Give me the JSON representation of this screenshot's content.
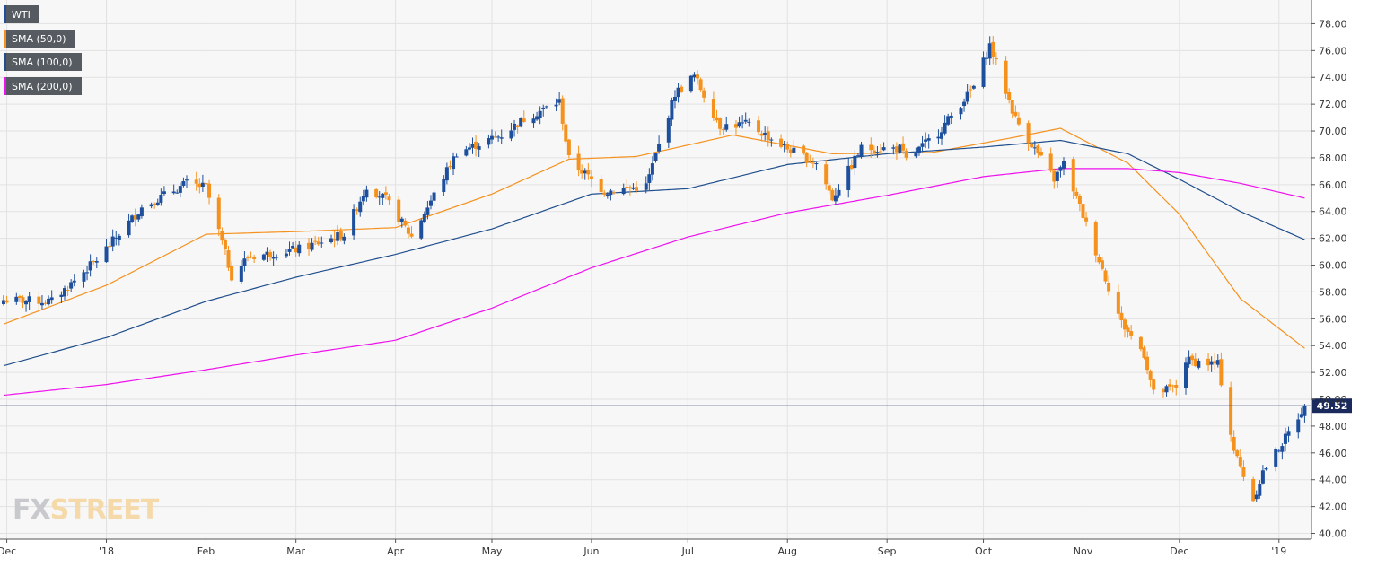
{
  "legend": {
    "wti": "WTI",
    "sma50": "SMA (50,0)",
    "sma100": "SMA (100,0)",
    "sma200": "SMA (200,0)"
  },
  "watermark": {
    "fx": "FX",
    "street": "STREET"
  },
  "colors": {
    "background": "#f7f7f7",
    "grid": "#e2e2e2",
    "bull": "#1d4f9c",
    "bear": "#f5921e",
    "sma50": "#f5921e",
    "sma100": "#1f4e8c",
    "sma200": "#ee11ee",
    "price_line": "#1a2a5c",
    "legend_bg": "#555b61"
  },
  "chart_data": {
    "type": "candlestick",
    "title": "",
    "instrument": "WTI",
    "timeframe": "daily",
    "xlabel": "",
    "ylabel": "",
    "ylim": [
      39.5,
      79.5
    ],
    "y_ticks": [
      "40.00",
      "42.00",
      "44.00",
      "46.00",
      "48.00",
      "50.00",
      "52.00",
      "54.00",
      "56.00",
      "58.00",
      "60.00",
      "62.00",
      "64.00",
      "66.00",
      "68.00",
      "70.00",
      "72.00",
      "74.00",
      "76.00",
      "78.00"
    ],
    "x_range": [
      "2017-11-30",
      "2019-01-10"
    ],
    "x_ticks": [
      {
        "label": "Dec",
        "date": "2017-12-01"
      },
      {
        "label": "'18",
        "date": "2018-01-01"
      },
      {
        "label": "Feb",
        "date": "2018-02-01"
      },
      {
        "label": "Mar",
        "date": "2018-03-01"
      },
      {
        "label": "Apr",
        "date": "2018-04-01"
      },
      {
        "label": "May",
        "date": "2018-05-01"
      },
      {
        "label": "Jun",
        "date": "2018-06-01"
      },
      {
        "label": "Jul",
        "date": "2018-07-01"
      },
      {
        "label": "Aug",
        "date": "2018-08-01"
      },
      {
        "label": "Sep",
        "date": "2018-09-01"
      },
      {
        "label": "Oct",
        "date": "2018-10-01"
      },
      {
        "label": "Nov",
        "date": "2018-11-01"
      },
      {
        "label": "Dec",
        "date": "2018-12-01"
      },
      {
        "label": "'19",
        "date": "2019-01-01"
      }
    ],
    "last_price": 49.52,
    "last_price_label": "49.52",
    "grid": true,
    "legend_position": "top-left",
    "close_anchors": [
      [
        "2017-11-30",
        57.4
      ],
      [
        "2017-12-15",
        57.3
      ],
      [
        "2017-12-29",
        60.4
      ],
      [
        "2018-01-12",
        64.3
      ],
      [
        "2018-01-26",
        66.1
      ],
      [
        "2018-02-01",
        65.8
      ],
      [
        "2018-02-09",
        59.2
      ],
      [
        "2018-02-14",
        60.6
      ],
      [
        "2018-03-02",
        61.2
      ],
      [
        "2018-03-16",
        62.3
      ],
      [
        "2018-03-23",
        65.9
      ],
      [
        "2018-03-29",
        64.9
      ],
      [
        "2018-04-06",
        62.1
      ],
      [
        "2018-04-20",
        68.4
      ],
      [
        "2018-05-04",
        69.7
      ],
      [
        "2018-05-11",
        70.9
      ],
      [
        "2018-05-22",
        72.2
      ],
      [
        "2018-05-25",
        67.9
      ],
      [
        "2018-06-05",
        65.5
      ],
      [
        "2018-06-18",
        65.9
      ],
      [
        "2018-06-27",
        72.8
      ],
      [
        "2018-07-03",
        74.1
      ],
      [
        "2018-07-11",
        70.4
      ],
      [
        "2018-07-20",
        70.5
      ],
      [
        "2018-07-31",
        68.8
      ],
      [
        "2018-08-10",
        67.6
      ],
      [
        "2018-08-15",
        65.0
      ],
      [
        "2018-08-24",
        68.7
      ],
      [
        "2018-09-05",
        68.7
      ],
      [
        "2018-09-07",
        67.8
      ],
      [
        "2018-09-17",
        69.9
      ],
      [
        "2018-09-28",
        73.3
      ],
      [
        "2018-10-03",
        76.4
      ],
      [
        "2018-10-11",
        70.9
      ],
      [
        "2018-10-23",
        66.4
      ],
      [
        "2018-10-26",
        67.6
      ],
      [
        "2018-11-01",
        63.7
      ],
      [
        "2018-11-13",
        55.7
      ],
      [
        "2018-11-20",
        53.4
      ],
      [
        "2018-11-23",
        50.4
      ],
      [
        "2018-11-30",
        50.9
      ],
      [
        "2018-12-03",
        52.9
      ],
      [
        "2018-12-13",
        52.6
      ],
      [
        "2018-12-18",
        46.2
      ],
      [
        "2018-12-24",
        42.5
      ],
      [
        "2018-12-27",
        44.6
      ],
      [
        "2019-01-03",
        47.1
      ],
      [
        "2019-01-09",
        49.52
      ]
    ],
    "sma_series": [
      {
        "name": "SMA (50,0)",
        "color": "#f5921e",
        "points": [
          [
            "2017-11-30",
            55.6
          ],
          [
            "2018-01-01",
            58.5
          ],
          [
            "2018-02-01",
            62.3
          ],
          [
            "2018-03-01",
            62.5
          ],
          [
            "2018-04-01",
            62.8
          ],
          [
            "2018-05-01",
            65.3
          ],
          [
            "2018-05-25",
            67.9
          ],
          [
            "2018-06-15",
            68.1
          ],
          [
            "2018-07-15",
            69.7
          ],
          [
            "2018-08-15",
            68.3
          ],
          [
            "2018-09-15",
            68.4
          ],
          [
            "2018-10-10",
            69.5
          ],
          [
            "2018-10-25",
            70.2
          ],
          [
            "2018-11-15",
            67.6
          ],
          [
            "2018-12-01",
            63.8
          ],
          [
            "2018-12-20",
            57.5
          ],
          [
            "2019-01-09",
            53.8
          ]
        ]
      },
      {
        "name": "SMA (100,0)",
        "color": "#1f4e8c",
        "points": [
          [
            "2017-11-30",
            52.5
          ],
          [
            "2018-01-01",
            54.6
          ],
          [
            "2018-02-01",
            57.3
          ],
          [
            "2018-03-01",
            59.1
          ],
          [
            "2018-04-01",
            60.8
          ],
          [
            "2018-05-01",
            62.7
          ],
          [
            "2018-06-01",
            65.3
          ],
          [
            "2018-07-01",
            65.7
          ],
          [
            "2018-08-01",
            67.5
          ],
          [
            "2018-09-01",
            68.3
          ],
          [
            "2018-10-01",
            68.8
          ],
          [
            "2018-10-25",
            69.3
          ],
          [
            "2018-11-15",
            68.3
          ],
          [
            "2018-12-01",
            66.4
          ],
          [
            "2018-12-20",
            64.0
          ],
          [
            "2019-01-09",
            61.9
          ]
        ]
      },
      {
        "name": "SMA (200,0)",
        "color": "#ee11ee",
        "points": [
          [
            "2017-11-30",
            50.3
          ],
          [
            "2018-01-01",
            51.1
          ],
          [
            "2018-02-01",
            52.2
          ],
          [
            "2018-03-01",
            53.3
          ],
          [
            "2018-04-01",
            54.4
          ],
          [
            "2018-05-01",
            56.8
          ],
          [
            "2018-06-01",
            59.8
          ],
          [
            "2018-07-01",
            62.1
          ],
          [
            "2018-08-01",
            63.9
          ],
          [
            "2018-09-01",
            65.2
          ],
          [
            "2018-10-01",
            66.6
          ],
          [
            "2018-10-25",
            67.2
          ],
          [
            "2018-11-15",
            67.2
          ],
          [
            "2018-12-01",
            66.9
          ],
          [
            "2018-12-20",
            66.1
          ],
          [
            "2019-01-09",
            65.0
          ]
        ]
      }
    ]
  }
}
